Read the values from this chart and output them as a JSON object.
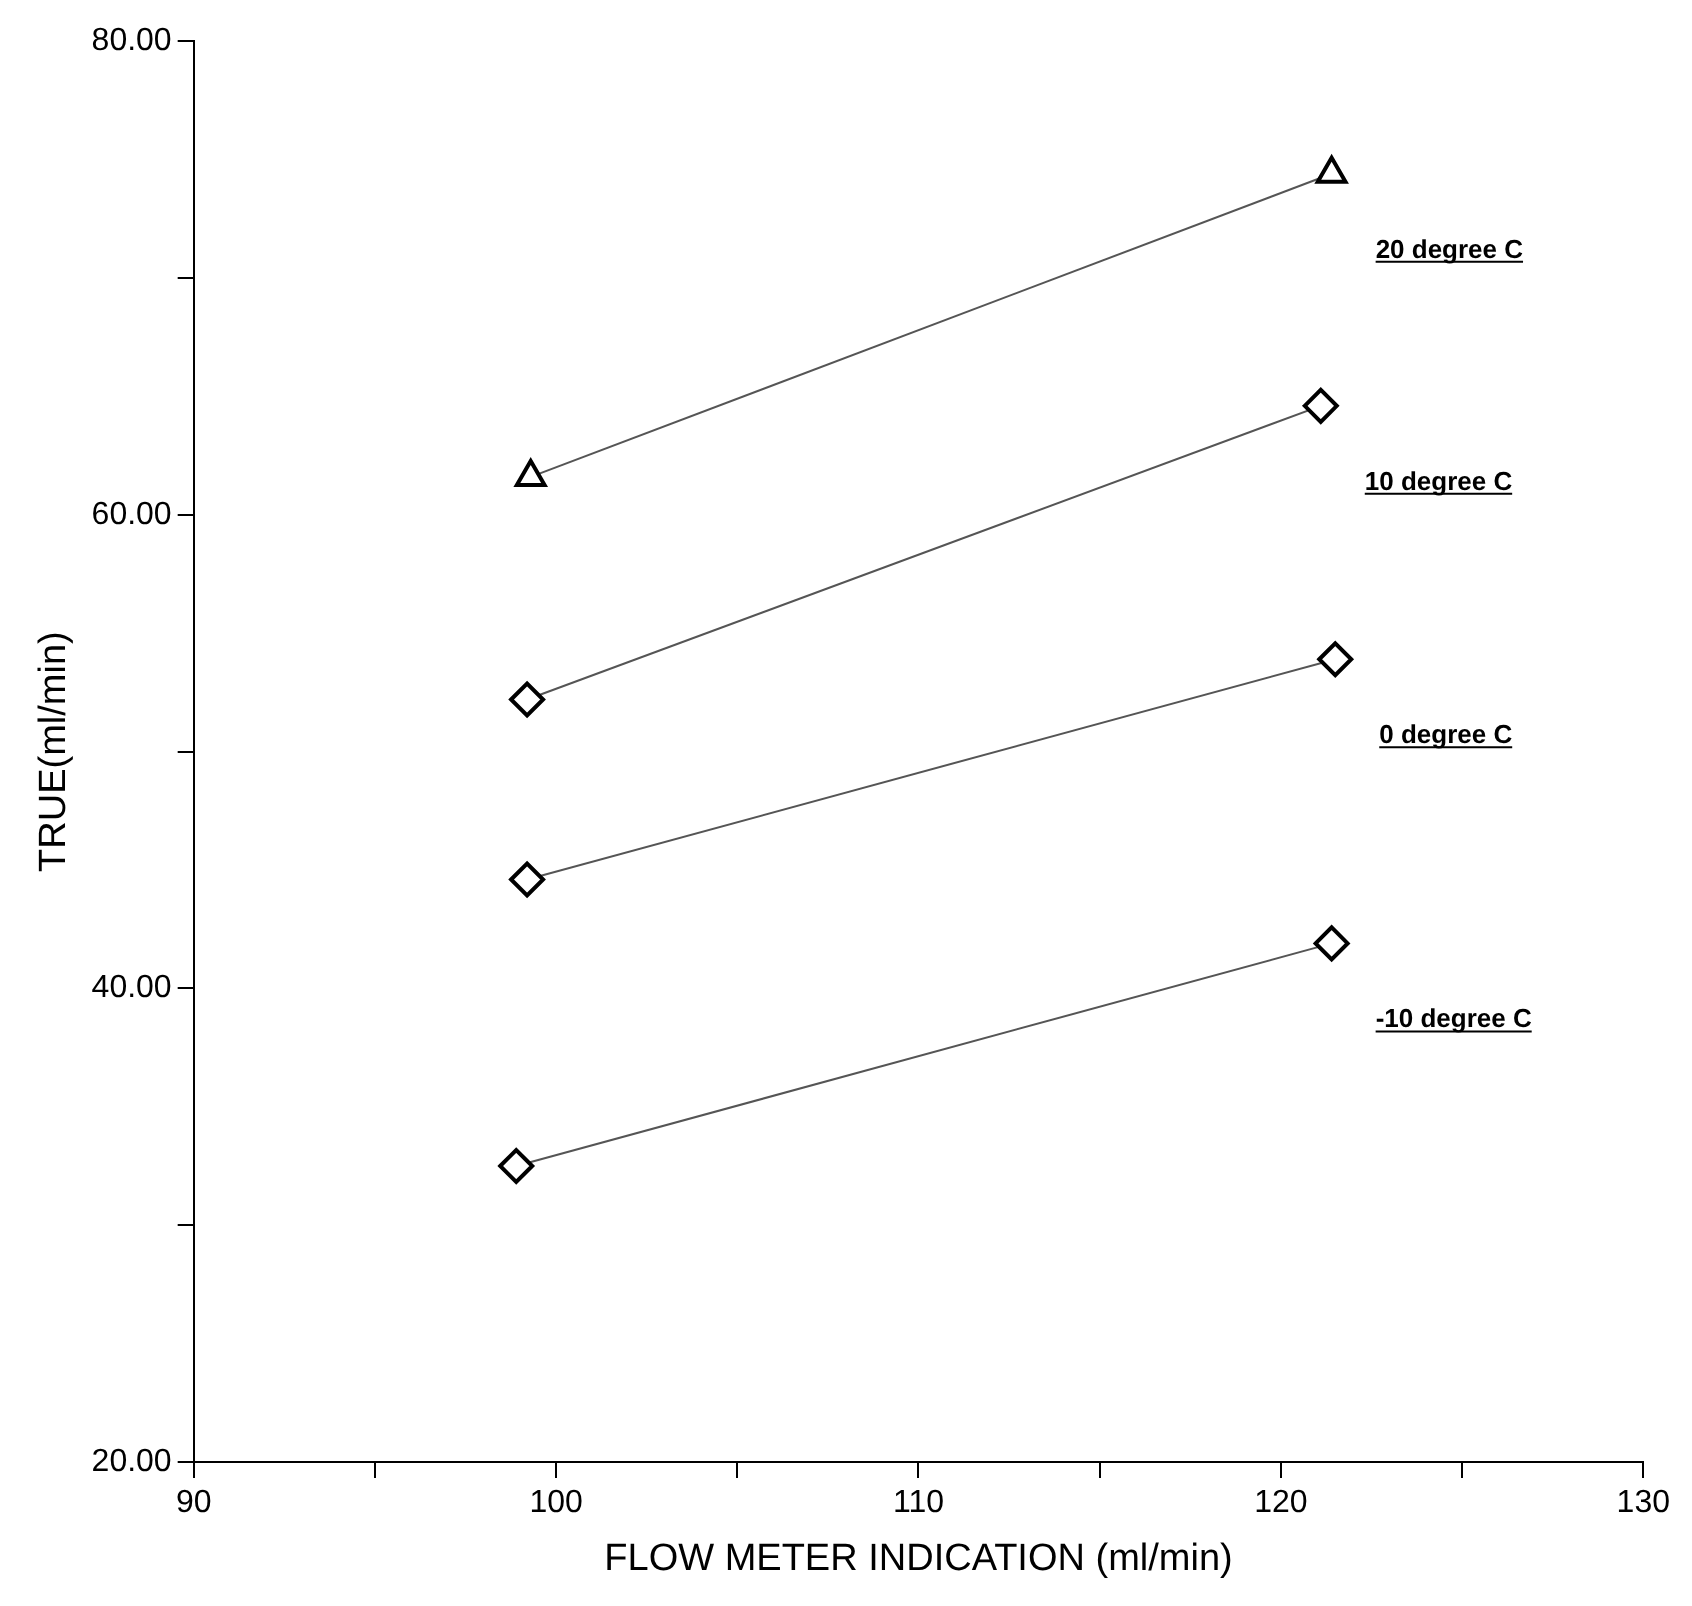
{
  "chart_data": {
    "type": "line",
    "xlabel": "FLOW METER INDICATION (ml/min)",
    "ylabel": "TRUE(ml/min)",
    "xlim": [
      90,
      130
    ],
    "xticks": [
      90,
      {
        "value": 95,
        "label": null
      },
      100,
      {
        "value": 105,
        "label": null
      },
      110,
      {
        "value": 115,
        "label": null
      },
      120,
      {
        "value": 125,
        "label": null
      },
      130
    ],
    "ylim": [
      20,
      80
    ],
    "yticks": [
      {
        "value": 20,
        "label": "20.00"
      },
      {
        "value": 30,
        "label": null
      },
      {
        "value": 40,
        "label": "40.00"
      },
      {
        "value": 50,
        "label": null
      },
      {
        "value": 60,
        "label": "60.00"
      },
      {
        "value": 70,
        "label": null
      },
      {
        "value": 80,
        "label": "80.00"
      }
    ],
    "grid": false,
    "legend": false,
    "series": [
      {
        "name": "20 degree C",
        "color": "#000000",
        "marker": "triangle",
        "x": [
          99.3,
          121.4
        ],
        "values": [
          61.6,
          74.4
        ]
      },
      {
        "name": "10 degree C",
        "color": "#000000",
        "marker": "diamond",
        "x": [
          99.2,
          121.1
        ],
        "values": [
          52.2,
          64.6
        ]
      },
      {
        "name": "0 degree C",
        "color": "#000000",
        "marker": "diamond",
        "x": [
          99.2,
          121.5
        ],
        "values": [
          44.6,
          53.9
        ]
      },
      {
        "name": "-10 degree C",
        "color": "#000000",
        "marker": "diamond",
        "x": [
          98.9,
          121.4
        ],
        "values": [
          32.5,
          41.9
        ]
      }
    ]
  }
}
